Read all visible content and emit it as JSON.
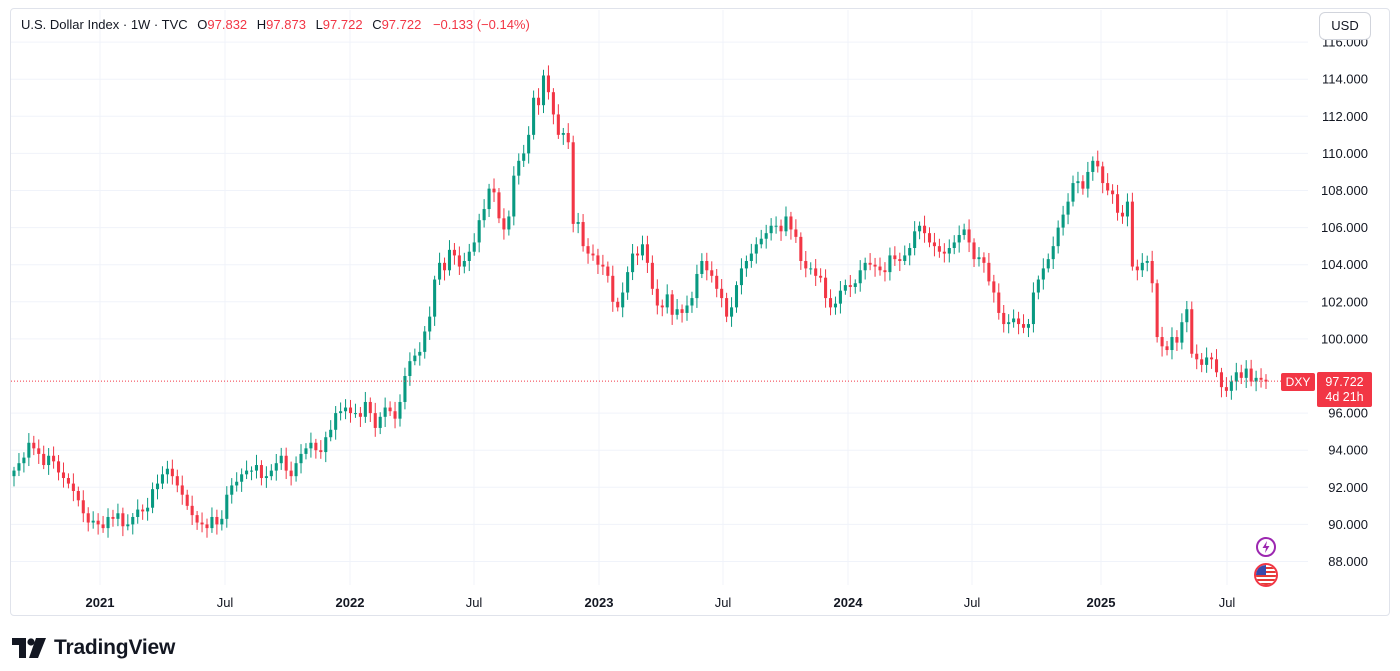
{
  "header": {
    "symbol": "U.S. Dollar Index · 1W · TVC",
    "open_label": "O",
    "open_value": "97.832",
    "high_label": "H",
    "high_value": "97.873",
    "low_label": "L",
    "low_value": "97.722",
    "close_label": "C",
    "close_value": "97.722",
    "change": "−0.133 (−0.14%)",
    "currency_button": "USD"
  },
  "price_tag": {
    "ticker": "DXY",
    "price": "97.722",
    "countdown": "4d 21h"
  },
  "brand": {
    "name": "TradingView"
  },
  "icons": {
    "events": "lightning-icon",
    "country": "us-flag-icon"
  },
  "colors": {
    "up": "#089981",
    "down": "#f23645",
    "grid": "#f0f3fa",
    "text": "#131722"
  },
  "chart_data": {
    "type": "candlestick",
    "title": "U.S. Dollar Index · 1W · TVC",
    "x_tick_labels": [
      "2021",
      "Jul",
      "2022",
      "Jul",
      "2023",
      "Jul",
      "2024",
      "Jul",
      "2025",
      "Jul"
    ],
    "y_tick_labels": [
      "88.000",
      "90.000",
      "92.000",
      "94.000",
      "96.000",
      "100.000",
      "102.000",
      "104.000",
      "106.000",
      "108.000",
      "110.000",
      "112.000",
      "114.000",
      "116.000"
    ],
    "y_range": [
      86.5,
      116.5
    ],
    "last_price": 97.722,
    "grid": true,
    "approx_weekly_closes": [
      92.9,
      93.3,
      93.6,
      94.4,
      94.1,
      93.8,
      93.2,
      93.7,
      93.4,
      92.8,
      92.5,
      92.2,
      91.8,
      91.3,
      90.6,
      90.1,
      90.2,
      90.0,
      89.8,
      90.4,
      90.3,
      90.6,
      89.9,
      90.0,
      90.4,
      90.8,
      90.7,
      90.9,
      91.9,
      92.2,
      92.7,
      93.0,
      92.6,
      92.1,
      91.6,
      91.0,
      90.5,
      90.1,
      90.0,
      89.8,
      90.4,
      90.0,
      90.3,
      91.6,
      92.1,
      92.3,
      92.7,
      92.9,
      92.9,
      93.2,
      92.5,
      92.6,
      92.9,
      93.3,
      93.7,
      92.9,
      92.6,
      93.3,
      93.8,
      94.1,
      94.4,
      94.0,
      93.9,
      94.7,
      95.1,
      96.0,
      96.1,
      96.3,
      96.0,
      96.0,
      95.8,
      96.6,
      96.0,
      95.2,
      95.8,
      96.3,
      96.1,
      95.7,
      96.6,
      98.0,
      98.8,
      99.1,
      99.3,
      100.4,
      101.2,
      103.2,
      104.1,
      103.7,
      104.8,
      104.5,
      103.9,
      104.2,
      104.7,
      105.2,
      106.4,
      107.0,
      108.1,
      107.9,
      106.5,
      105.9,
      106.6,
      108.8,
      109.6,
      110.0,
      111.0,
      113.0,
      112.6,
      114.2,
      113.3,
      112.1,
      111.0,
      111.1,
      110.6,
      106.2,
      106.3,
      105.0,
      104.6,
      104.5,
      104.0,
      103.9,
      103.4,
      102.0,
      101.7,
      102.5,
      103.6,
      104.6,
      104.5,
      105.1,
      104.1,
      102.7,
      101.8,
      101.7,
      102.4,
      101.3,
      101.6,
      101.4,
      101.8,
      102.2,
      103.5,
      104.2,
      103.7,
      103.4,
      102.7,
      102.2,
      101.2,
      101.7,
      102.9,
      103.8,
      104.2,
      104.6,
      105.1,
      105.4,
      105.7,
      106.1,
      106.1,
      105.8,
      106.6,
      105.9,
      105.5,
      104.2,
      103.8,
      103.8,
      103.4,
      103.3,
      102.2,
      101.7,
      101.9,
      102.6,
      102.9,
      102.8,
      103.0,
      103.7,
      104.1,
      104.0,
      103.9,
      103.7,
      103.6,
      104.5,
      104.3,
      104.2,
      104.5,
      104.9,
      105.8,
      106.1,
      105.7,
      105.2,
      105.0,
      104.7,
      104.6,
      104.9,
      105.2,
      105.6,
      105.9,
      105.2,
      104.3,
      104.4,
      104.1,
      103.1,
      102.5,
      101.4,
      100.8,
      100.9,
      101.1,
      100.8,
      100.6,
      100.8,
      102.5,
      103.2,
      103.8,
      104.3,
      105.0,
      106.0,
      106.7,
      107.4,
      108.4,
      108.5,
      108.1,
      109.0,
      109.6,
      109.3,
      108.4,
      108.0,
      107.8,
      106.8,
      106.6,
      107.4,
      103.9,
      103.7,
      104.1,
      104.2,
      103.0,
      100.1,
      99.6,
      99.4,
      100.1,
      99.8,
      100.9,
      101.6,
      99.2,
      98.9,
      98.6,
      99.0,
      98.9,
      98.2,
      97.4,
      97.2,
      97.7,
      98.2,
      97.9,
      98.4,
      97.7,
      97.9,
      97.8,
      97.7
    ]
  }
}
